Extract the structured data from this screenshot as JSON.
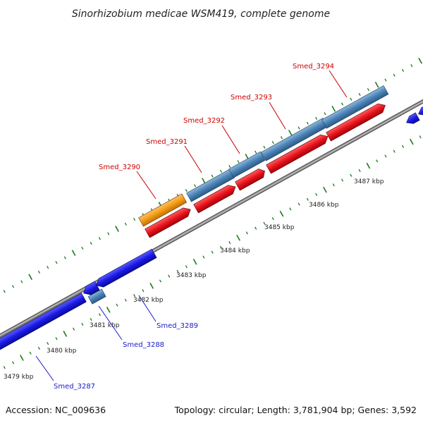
{
  "title": "Sinorhizobium medicae WSM419, complete genome",
  "footer": {
    "accession": "Accession: NC_009636",
    "topology": "Topology: circular; Length: 3,781,904 bp; Genes: 3,592"
  },
  "scale_labels": [
    "3479 kbp",
    "3480 kbp",
    "3481 kbp",
    "3482 kbp",
    "3483 kbp",
    "3484 kbp",
    "3485 kbp",
    "3486 kbp",
    "3487 kbp"
  ],
  "gene_labels": [
    {
      "name": "Smed_3287",
      "color": "#1a1acc"
    },
    {
      "name": "Smed_3288",
      "color": "#1a1acc"
    },
    {
      "name": "Smed_3289",
      "color": "#1a1acc"
    },
    {
      "name": "Smed_3290",
      "color": "#cc0000"
    },
    {
      "name": "Smed_3291",
      "color": "#cc0000"
    },
    {
      "name": "Smed_3292",
      "color": "#cc0000"
    },
    {
      "name": "Smed_3293",
      "color": "#cc0000"
    },
    {
      "name": "Smed_3294",
      "color": "#cc0000"
    }
  ],
  "colors": {
    "backbone": "#8a8a8a",
    "tick": "#1a7a1a",
    "forward_cds": "#e8141e",
    "reverse_cds": "#1a1ae6",
    "steelblue_feature": "#4a82b4",
    "orange_feature": "#f39c12"
  }
}
